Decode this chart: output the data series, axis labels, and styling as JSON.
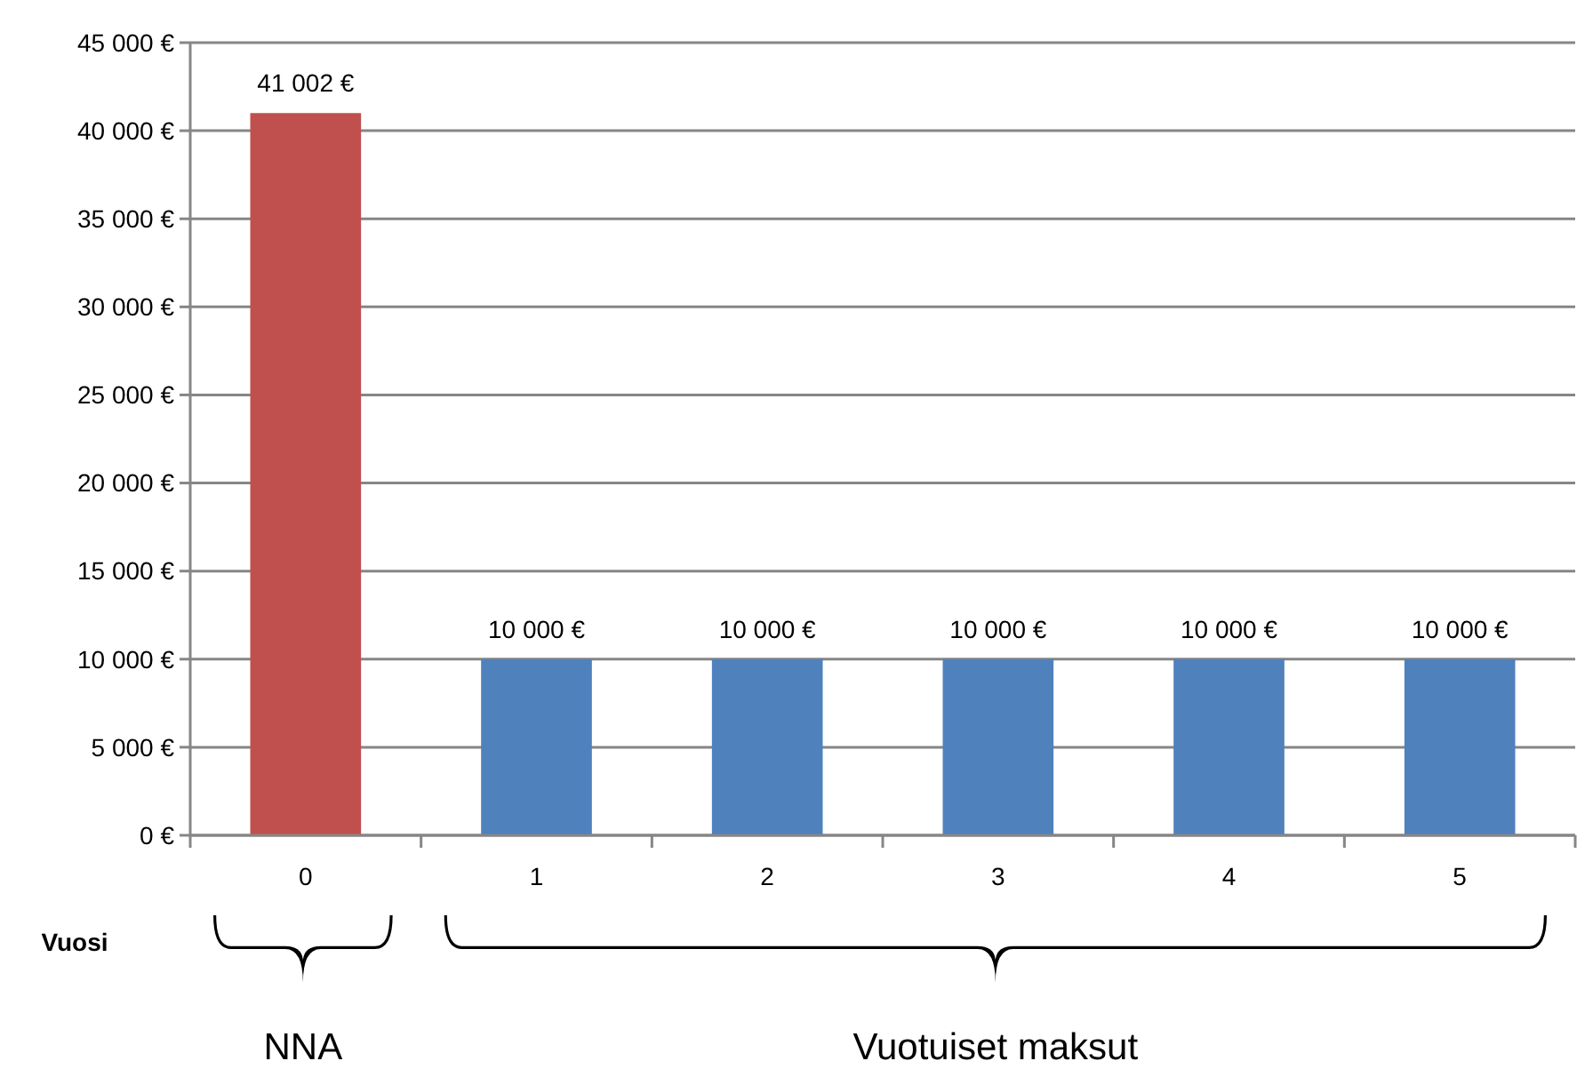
{
  "chart_data": {
    "type": "bar",
    "xlabel": "Vuosi",
    "categories": [
      "0",
      "1",
      "2",
      "3",
      "4",
      "5"
    ],
    "values": [
      41002,
      10000,
      10000,
      10000,
      10000,
      10000
    ],
    "colors": [
      "#c0504d",
      "#4f81bd",
      "#4f81bd",
      "#4f81bd",
      "#4f81bd",
      "#4f81bd"
    ],
    "value_labels": [
      "41 002 €",
      "10 000 €",
      "10 000 €",
      "10 000 €",
      "10 000 €",
      "10 000 €"
    ],
    "ylim": [
      0,
      45000
    ],
    "yticks": [
      {
        "value": 0,
        "label": "0 €"
      },
      {
        "value": 5000,
        "label": "5 000 €"
      },
      {
        "value": 10000,
        "label": "10 000 €"
      },
      {
        "value": 15000,
        "label": "15 000 €"
      },
      {
        "value": 20000,
        "label": "20 000 €"
      },
      {
        "value": 25000,
        "label": "25 000 €"
      },
      {
        "value": 30000,
        "label": "30 000 €"
      },
      {
        "value": 35000,
        "label": "35 000 €"
      },
      {
        "value": 40000,
        "label": "40 000 €"
      },
      {
        "value": 45000,
        "label": "45 000 €"
      }
    ],
    "grid": "y",
    "annotations": [
      "NNA",
      "Vuotuiset maksut"
    ]
  }
}
